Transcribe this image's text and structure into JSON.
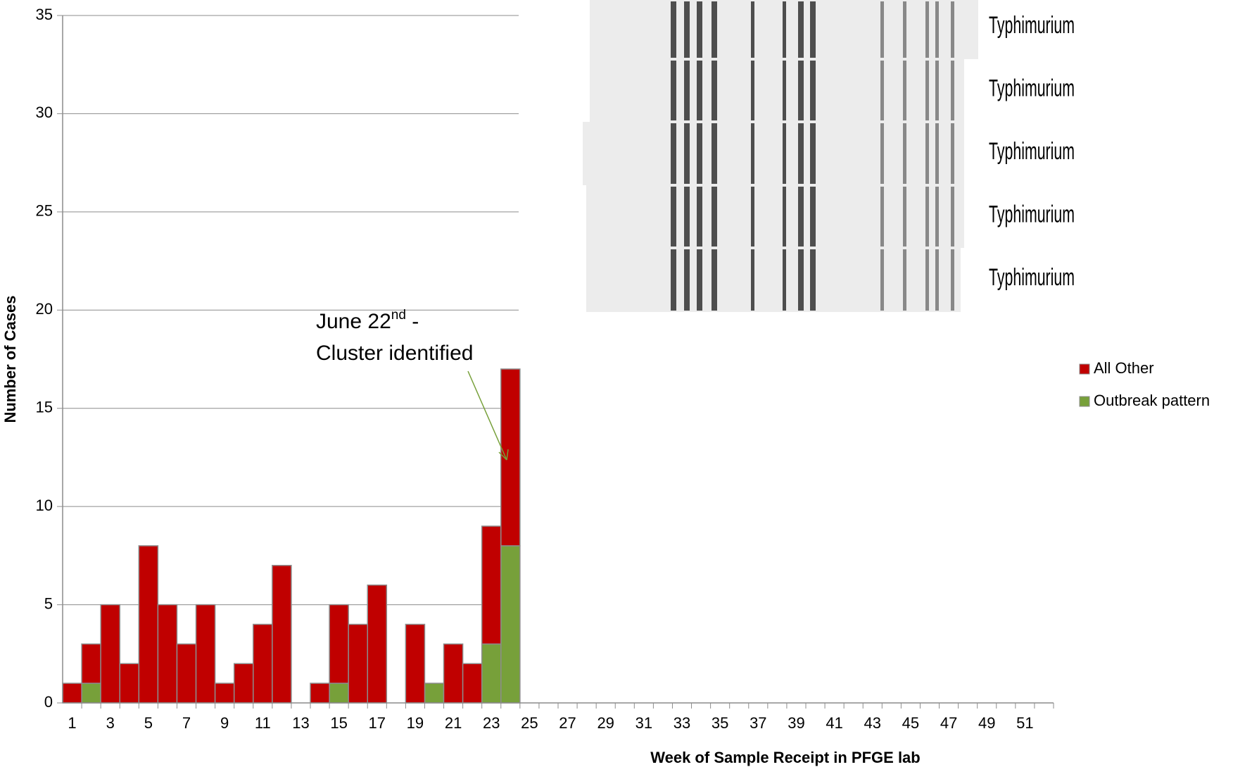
{
  "chart_data": {
    "type": "bar",
    "stacked": true,
    "x_label": "Week of Sample Receipt in PFGE lab",
    "y_label": "Number of Cases",
    "categories": [
      "1",
      null,
      "3",
      null,
      "5",
      null,
      "7",
      null,
      "9",
      null,
      "11",
      null,
      "13",
      null,
      "15",
      null,
      "17",
      null,
      "19",
      null,
      "21",
      null,
      "23",
      null,
      "25",
      null,
      "27",
      null,
      "29",
      null,
      "31",
      null,
      "33",
      null,
      "35",
      null,
      "37",
      null,
      "39",
      null,
      "41",
      null,
      "43",
      null,
      "45",
      null,
      "47",
      null,
      "49",
      null,
      "51",
      null
    ],
    "series": [
      {
        "name": "All Other",
        "color": "#c00000",
        "values": [
          1,
          2,
          5,
          2,
          8,
          5,
          3,
          5,
          1,
          2,
          4,
          7,
          0,
          1,
          4,
          4,
          6,
          0,
          4,
          0,
          3,
          2,
          6,
          9,
          0,
          0,
          0,
          0,
          0,
          0,
          0,
          0,
          0,
          0,
          0,
          0,
          0,
          0,
          0,
          0,
          0,
          0,
          0,
          0,
          0,
          0,
          0,
          0,
          0,
          0,
          0,
          0
        ]
      },
      {
        "name": "Outbreak pattern",
        "color": "#77a03a",
        "values": [
          0,
          1,
          0,
          0,
          0,
          0,
          0,
          0,
          0,
          0,
          0,
          0,
          0,
          0,
          1,
          0,
          0,
          0,
          0,
          1,
          0,
          0,
          3,
          8,
          0,
          0,
          0,
          0,
          0,
          0,
          0,
          0,
          0,
          0,
          0,
          0,
          0,
          0,
          0,
          0,
          0,
          0,
          0,
          0,
          0,
          0,
          0,
          0,
          0,
          0,
          0,
          0
        ]
      }
    ],
    "ylim": [
      0,
      35
    ],
    "yticks": [
      0,
      5,
      10,
      15,
      20,
      25,
      30,
      35
    ],
    "grid": true,
    "legend": "right",
    "annotation": [
      "June 22",
      "nd",
      " -",
      "Cluster identified"
    ],
    "gel_labels": [
      "Typhimurium",
      "Typhimurium",
      "Typhimurium",
      "Typhimurium",
      "Typhimurium"
    ]
  }
}
